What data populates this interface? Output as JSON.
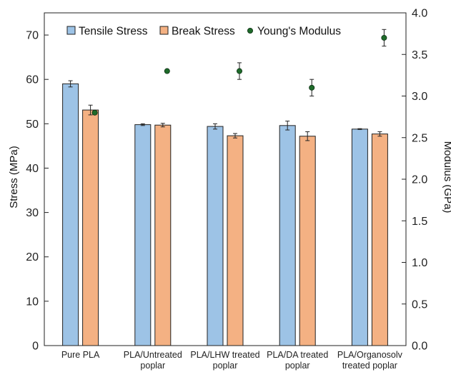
{
  "chart_data": {
    "type": "bar",
    "categories": [
      [
        "Pure PLA"
      ],
      [
        "PLA/Untreated",
        "poplar"
      ],
      [
        "PLA/LHW treated",
        "poplar"
      ],
      [
        "PLA/DA treated",
        "poplar"
      ],
      [
        "PLA/Organosolv",
        "treated poplar"
      ]
    ],
    "series": [
      {
        "name": "Tensile Stress",
        "axis": "left",
        "kind": "bar",
        "color": "#9DC3E6",
        "values": [
          59.0,
          49.8,
          49.4,
          49.6,
          48.8
        ],
        "errors": [
          0.7,
          0.2,
          0.6,
          1.0,
          0.1
        ]
      },
      {
        "name": "Break Stress",
        "axis": "left",
        "kind": "bar",
        "color": "#F4B183",
        "values": [
          53.1,
          49.7,
          47.3,
          47.2,
          47.7
        ],
        "errors": [
          1.1,
          0.4,
          0.5,
          1.0,
          0.5
        ]
      },
      {
        "name": "Young's Modulus",
        "axis": "right",
        "kind": "scatter",
        "color": "#1E6B2A",
        "values": [
          2.8,
          3.3,
          3.3,
          3.1,
          3.7
        ],
        "errors": [
          0.0,
          0.0,
          0.1,
          0.1,
          0.1
        ]
      }
    ],
    "ylabel": "Stress (MPa)",
    "y2label": "Modulus (GPa)",
    "ylim": [
      0,
      75
    ],
    "y2lim": [
      0,
      4
    ],
    "yticks": [
      "0",
      "10",
      "20",
      "30",
      "40",
      "50",
      "60",
      "70"
    ],
    "y2ticks": [
      "0.0",
      "0.5",
      "1.0",
      "1.5",
      "2.0",
      "2.5",
      "3.0",
      "3.5",
      "4.0"
    ],
    "grid": false,
    "legend": "top"
  }
}
